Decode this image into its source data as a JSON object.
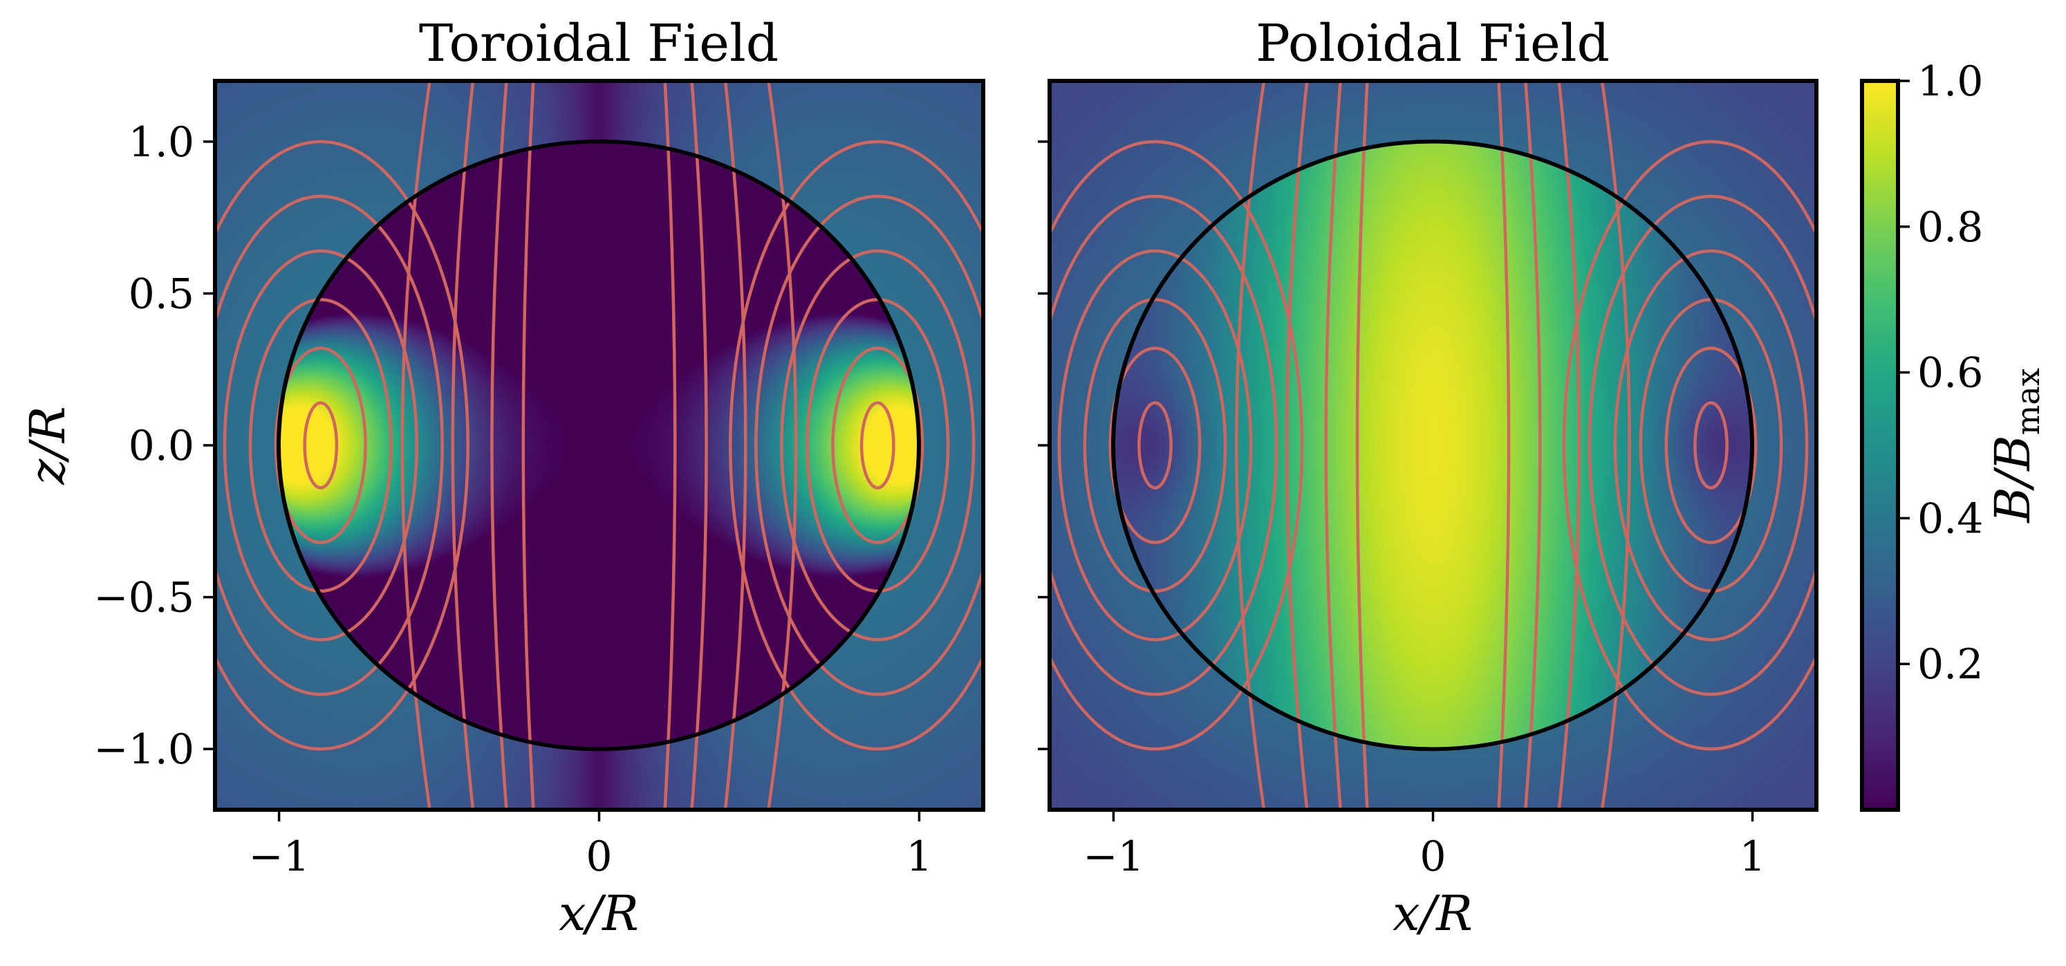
{
  "chart_data": [
    {
      "type": "heatmap",
      "title": "Toroidal Field",
      "xlabel": "x/R",
      "ylabel": "z/R",
      "xlim": [
        -1.2,
        1.2
      ],
      "ylim": [
        -1.2,
        1.2
      ],
      "x_ticks": [
        -1,
        0,
        1
      ],
      "x_tick_labels": [
        "−1",
        "0",
        "1"
      ],
      "y_ticks": [
        1.0,
        0.5,
        0.0,
        -0.5,
        -1.0
      ],
      "y_tick_labels": [
        "1.0",
        "0.5",
        "0.0",
        "−0.5",
        "−1.0"
      ],
      "star_radius": 1.0,
      "peak_locations": [
        [
          -0.65,
          0.0
        ],
        [
          0.65,
          0.0
        ]
      ],
      "minimum_locations": [
        [
          0.0,
          0.0
        ]
      ],
      "contour_centers": [
        [
          -0.87,
          0.0
        ],
        [
          0.87,
          0.0
        ]
      ],
      "grid": false
    },
    {
      "type": "heatmap",
      "title": "Poloidal Field",
      "xlabel": "x/R",
      "ylabel": "",
      "xlim": [
        -1.2,
        1.2
      ],
      "ylim": [
        -1.2,
        1.2
      ],
      "x_ticks": [
        -1,
        0,
        1
      ],
      "x_tick_labels": [
        "−1",
        "0",
        "1"
      ],
      "y_ticks": [
        1.0,
        0.5,
        0.0,
        -0.5,
        -1.0
      ],
      "star_radius": 1.0,
      "peak_locations": [
        [
          0.0,
          0.0
        ]
      ],
      "minimum_locations": [
        [
          -0.87,
          0.0
        ],
        [
          0.87,
          0.0
        ]
      ],
      "contour_centers": [
        [
          -0.87,
          0.0
        ],
        [
          0.87,
          0.0
        ]
      ],
      "grid": false
    }
  ],
  "colorbar": {
    "label_main": "B/B",
    "label_sub": "max",
    "ticks": [
      1.0,
      0.8,
      0.6,
      0.4,
      0.2
    ],
    "tick_labels": [
      "1.0",
      "0.8",
      "0.6",
      "0.4",
      "0.2"
    ],
    "range": [
      0.0,
      1.0
    ],
    "colormap": "viridis"
  },
  "colors": {
    "contour": "#d2665e",
    "star_outline": "#000000",
    "viridis_low": "#440154",
    "viridis_high": "#fde725"
  }
}
